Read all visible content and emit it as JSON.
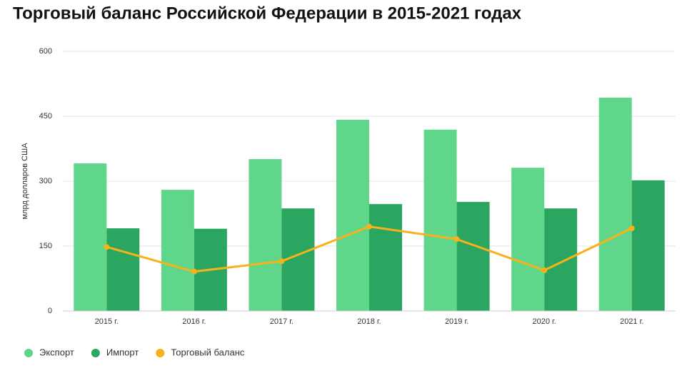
{
  "chart_data": {
    "type": "bar-line",
    "title": "Торговый баланс Российской Федерации в 2015-2021 годах",
    "y_label": "млрд долларов США",
    "categories": [
      "2015 г.",
      "2016 г.",
      "2017 г.",
      "2018 г.",
      "2019 г.",
      "2020 г.",
      "2021 г."
    ],
    "series": [
      {
        "name": "Экспорт",
        "type": "bar",
        "color": "#5fd68a",
        "values": [
          341,
          280,
          351,
          442,
          419,
          331,
          493
        ]
      },
      {
        "name": "Импорт",
        "type": "bar",
        "color": "#2aa660",
        "values": [
          191,
          190,
          237,
          247,
          252,
          237,
          302
        ]
      },
      {
        "name": "Торговый баланс",
        "type": "line",
        "color": "#f7b21b",
        "values": [
          148,
          91,
          115,
          195,
          166,
          94,
          191
        ]
      }
    ],
    "ylim": [
      0,
      600
    ],
    "yticks": [
      0,
      150,
      300,
      450,
      600
    ],
    "grid": true
  }
}
